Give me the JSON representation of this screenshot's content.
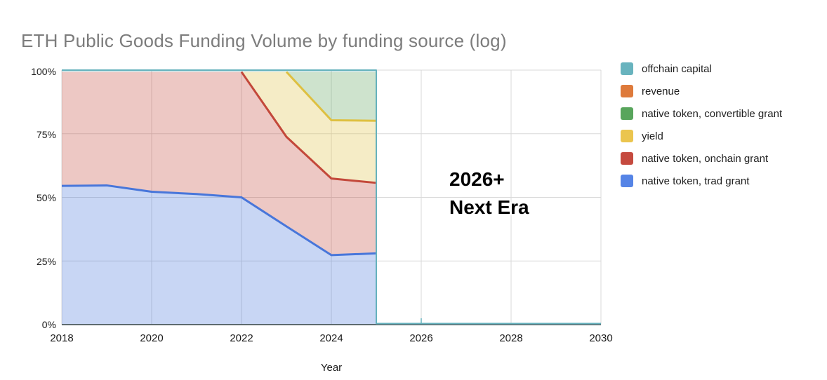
{
  "title": "ETH Public Goods Funding Volume by funding source (log)",
  "annotation": {
    "line1": "2026+",
    "line2": "Next Era"
  },
  "axis": {
    "y_ticks": [
      "100%",
      "75%",
      "50%",
      "25%",
      "0%"
    ],
    "x_ticks": [
      "2018",
      "2020",
      "2022",
      "2024",
      "2026",
      "2028",
      "2030"
    ],
    "x_title": "Year"
  },
  "legend": {
    "items": [
      {
        "label": "offchain capital",
        "color": "#68B3BE"
      },
      {
        "label": "revenue",
        "color": "#DE7A3B"
      },
      {
        "label": "native token, convertible grant",
        "color": "#58A55C"
      },
      {
        "label": "yield",
        "color": "#EBC54E"
      },
      {
        "label": "native token, onchain grant",
        "color": "#C54A3F"
      },
      {
        "label": "native token, trad grant",
        "color": "#5584E6"
      }
    ]
  },
  "chart_data": {
    "type": "area",
    "stacking": "percent",
    "title": "ETH Public Goods Funding Volume by funding source (log)",
    "xlabel": "Year",
    "ylabel": "",
    "x": [
      2018,
      2019,
      2020,
      2021,
      2022,
      2023,
      2024,
      2025
    ],
    "x_range": [
      2018,
      2030
    ],
    "y_range": [
      0,
      100
    ],
    "y_gridlines_pct": [
      25,
      50,
      75,
      100
    ],
    "x_gridline_years": [
      2018,
      2020,
      2022,
      2024,
      2026,
      2028,
      2030
    ],
    "grid_color": "#d9d9d9",
    "axis_line_color": "#5e6b6e",
    "fill_opacity": 0.3,
    "data_end_year": 2025,
    "series": [
      {
        "name": "native token, trad grant",
        "color": "#4876DA",
        "values": [
          54.5,
          54.7,
          52.2,
          51.3,
          50.0,
          38.6,
          27.3,
          28.0
        ],
        "line": true,
        "line_from": 2018,
        "line_width": 3
      },
      {
        "name": "native token, onchain grant",
        "color": "#C3483A",
        "values": [
          44.8,
          44.6,
          47.1,
          48.0,
          49.3,
          35.2,
          30.1,
          27.7
        ],
        "line": true,
        "line_from": 2022,
        "line_width": 3
      },
      {
        "name": "yield",
        "color": "#DEC041",
        "values": [
          0,
          0,
          0,
          0,
          0,
          25.5,
          22.9,
          24.4
        ],
        "line": true,
        "line_from": 2023,
        "line_width": 3
      },
      {
        "name": "native token, convertible grant",
        "color": "#5CA258",
        "values": [
          0,
          0,
          0,
          0,
          0,
          0,
          19.0,
          19.2
        ],
        "line": false
      },
      {
        "name": "revenue",
        "color": "#DE7A3B",
        "values": [
          0,
          0,
          0,
          0,
          0,
          0,
          0,
          0
        ],
        "line": false
      },
      {
        "name": "offchain capital",
        "color": "#65B2BD",
        "values": [
          0.7,
          0.7,
          0.7,
          0.7,
          0.7,
          0.7,
          0.7,
          0.7
        ],
        "line": true,
        "line_from": 2018,
        "line_width": 2,
        "end_drop": true,
        "baseline_after_pct": 0.4,
        "bottom_tick_year": 2026
      }
    ]
  }
}
